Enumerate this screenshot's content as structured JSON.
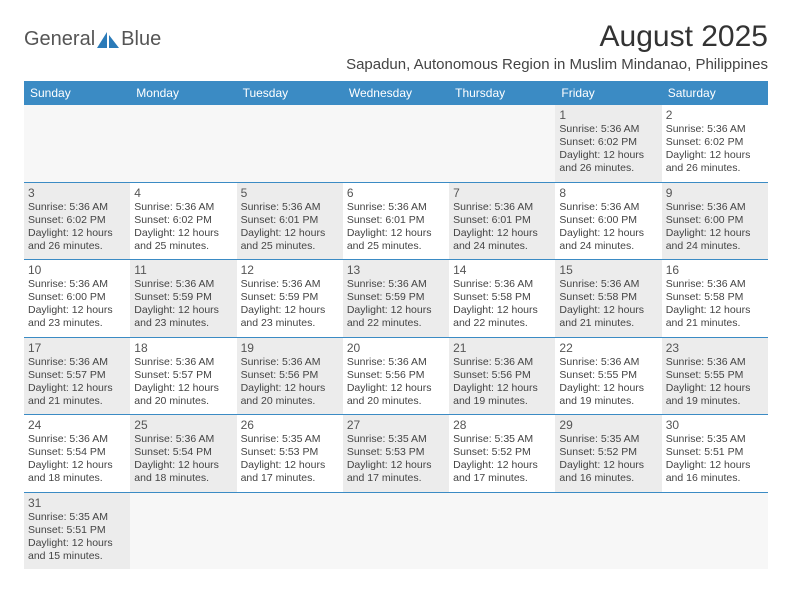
{
  "logo": {
    "general": "General",
    "blue": "Blue"
  },
  "title": "August 2025",
  "location": "Sapadun, Autonomous Region in Muslim Mindanao, Philippines",
  "colors": {
    "header_bg": "#3b8bc4",
    "header_text": "#ffffff",
    "shaded_bg": "#ececec",
    "border": "#3b8bc4",
    "logo_blue": "#2a7ab8"
  },
  "day_headers": [
    "Sunday",
    "Monday",
    "Tuesday",
    "Wednesday",
    "Thursday",
    "Friday",
    "Saturday"
  ],
  "weeks": [
    [
      {
        "empty": true
      },
      {
        "empty": true
      },
      {
        "empty": true
      },
      {
        "empty": true
      },
      {
        "empty": true
      },
      {
        "day": "1",
        "shaded": true,
        "sunrise": "5:36 AM",
        "sunset": "6:02 PM",
        "daylight": "12 hours and 26 minutes."
      },
      {
        "day": "2",
        "sunrise": "5:36 AM",
        "sunset": "6:02 PM",
        "daylight": "12 hours and 26 minutes."
      }
    ],
    [
      {
        "day": "3",
        "shaded": true,
        "sunrise": "5:36 AM",
        "sunset": "6:02 PM",
        "daylight": "12 hours and 26 minutes."
      },
      {
        "day": "4",
        "sunrise": "5:36 AM",
        "sunset": "6:02 PM",
        "daylight": "12 hours and 25 minutes."
      },
      {
        "day": "5",
        "shaded": true,
        "sunrise": "5:36 AM",
        "sunset": "6:01 PM",
        "daylight": "12 hours and 25 minutes."
      },
      {
        "day": "6",
        "sunrise": "5:36 AM",
        "sunset": "6:01 PM",
        "daylight": "12 hours and 25 minutes."
      },
      {
        "day": "7",
        "shaded": true,
        "sunrise": "5:36 AM",
        "sunset": "6:01 PM",
        "daylight": "12 hours and 24 minutes."
      },
      {
        "day": "8",
        "sunrise": "5:36 AM",
        "sunset": "6:00 PM",
        "daylight": "12 hours and 24 minutes."
      },
      {
        "day": "9",
        "shaded": true,
        "sunrise": "5:36 AM",
        "sunset": "6:00 PM",
        "daylight": "12 hours and 24 minutes."
      }
    ],
    [
      {
        "day": "10",
        "sunrise": "5:36 AM",
        "sunset": "6:00 PM",
        "daylight": "12 hours and 23 minutes."
      },
      {
        "day": "11",
        "shaded": true,
        "sunrise": "5:36 AM",
        "sunset": "5:59 PM",
        "daylight": "12 hours and 23 minutes."
      },
      {
        "day": "12",
        "sunrise": "5:36 AM",
        "sunset": "5:59 PM",
        "daylight": "12 hours and 23 minutes."
      },
      {
        "day": "13",
        "shaded": true,
        "sunrise": "5:36 AM",
        "sunset": "5:59 PM",
        "daylight": "12 hours and 22 minutes."
      },
      {
        "day": "14",
        "sunrise": "5:36 AM",
        "sunset": "5:58 PM",
        "daylight": "12 hours and 22 minutes."
      },
      {
        "day": "15",
        "shaded": true,
        "sunrise": "5:36 AM",
        "sunset": "5:58 PM",
        "daylight": "12 hours and 21 minutes."
      },
      {
        "day": "16",
        "sunrise": "5:36 AM",
        "sunset": "5:58 PM",
        "daylight": "12 hours and 21 minutes."
      }
    ],
    [
      {
        "day": "17",
        "shaded": true,
        "sunrise": "5:36 AM",
        "sunset": "5:57 PM",
        "daylight": "12 hours and 21 minutes."
      },
      {
        "day": "18",
        "sunrise": "5:36 AM",
        "sunset": "5:57 PM",
        "daylight": "12 hours and 20 minutes."
      },
      {
        "day": "19",
        "shaded": true,
        "sunrise": "5:36 AM",
        "sunset": "5:56 PM",
        "daylight": "12 hours and 20 minutes."
      },
      {
        "day": "20",
        "sunrise": "5:36 AM",
        "sunset": "5:56 PM",
        "daylight": "12 hours and 20 minutes."
      },
      {
        "day": "21",
        "shaded": true,
        "sunrise": "5:36 AM",
        "sunset": "5:56 PM",
        "daylight": "12 hours and 19 minutes."
      },
      {
        "day": "22",
        "sunrise": "5:36 AM",
        "sunset": "5:55 PM",
        "daylight": "12 hours and 19 minutes."
      },
      {
        "day": "23",
        "shaded": true,
        "sunrise": "5:36 AM",
        "sunset": "5:55 PM",
        "daylight": "12 hours and 19 minutes."
      }
    ],
    [
      {
        "day": "24",
        "sunrise": "5:36 AM",
        "sunset": "5:54 PM",
        "daylight": "12 hours and 18 minutes."
      },
      {
        "day": "25",
        "shaded": true,
        "sunrise": "5:36 AM",
        "sunset": "5:54 PM",
        "daylight": "12 hours and 18 minutes."
      },
      {
        "day": "26",
        "sunrise": "5:35 AM",
        "sunset": "5:53 PM",
        "daylight": "12 hours and 17 minutes."
      },
      {
        "day": "27",
        "shaded": true,
        "sunrise": "5:35 AM",
        "sunset": "5:53 PM",
        "daylight": "12 hours and 17 minutes."
      },
      {
        "day": "28",
        "sunrise": "5:35 AM",
        "sunset": "5:52 PM",
        "daylight": "12 hours and 17 minutes."
      },
      {
        "day": "29",
        "shaded": true,
        "sunrise": "5:35 AM",
        "sunset": "5:52 PM",
        "daylight": "12 hours and 16 minutes."
      },
      {
        "day": "30",
        "sunrise": "5:35 AM",
        "sunset": "5:51 PM",
        "daylight": "12 hours and 16 minutes."
      }
    ],
    [
      {
        "day": "31",
        "shaded": true,
        "sunrise": "5:35 AM",
        "sunset": "5:51 PM",
        "daylight": "12 hours and 15 minutes."
      },
      {
        "empty": true
      },
      {
        "empty": true
      },
      {
        "empty": true
      },
      {
        "empty": true
      },
      {
        "empty": true
      },
      {
        "empty": true
      }
    ]
  ],
  "labels": {
    "sunrise": "Sunrise:",
    "sunset": "Sunset:",
    "daylight": "Daylight:"
  }
}
